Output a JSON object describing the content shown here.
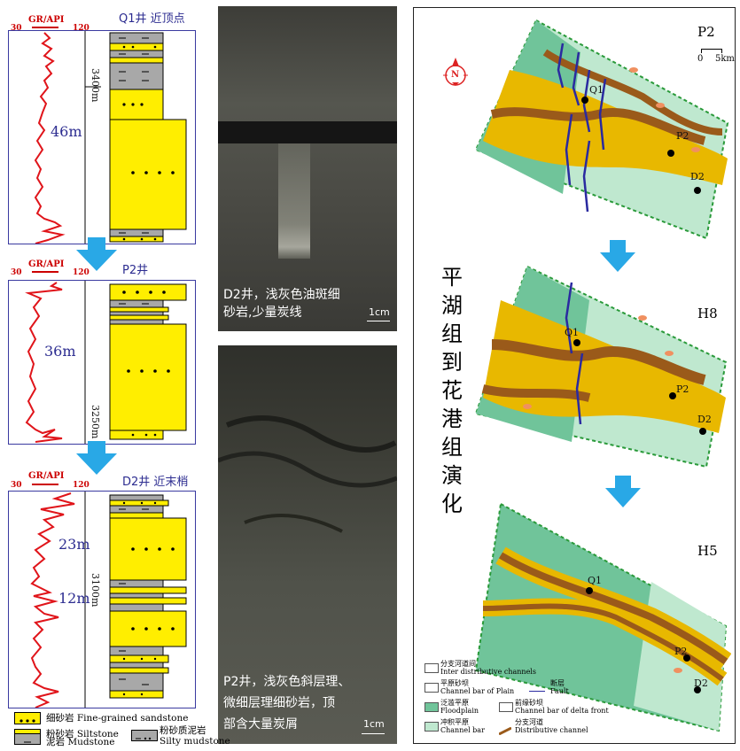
{
  "logs": [
    {
      "well": "Q1井  近顶点",
      "gr": "GR/API",
      "gr_min": "30",
      "gr_max": "120",
      "thickness": "46m",
      "depth": "3400m"
    },
    {
      "well": "P2井",
      "gr": "GR/API",
      "gr_min": "30",
      "gr_max": "120",
      "thickness": "36m",
      "depth": "3250m"
    },
    {
      "well": "D2井 近末梢",
      "gr": "GR/API",
      "gr_min": "30",
      "gr_max": "120",
      "thickness_a": "23m",
      "thickness_b": "12m",
      "depth": "3100m"
    }
  ],
  "lithology_legend": {
    "fine_sand": "细砂岩 Fine-grained sandstone",
    "siltstone": "粉砂岩 Siltstone",
    "mudstone": "泥岩 Mudstone",
    "silty_mud_cn": "粉砂质泥岩",
    "silty_mud_en": "Silty mudstone"
  },
  "photos": {
    "top_caption_1": "D2井，浅灰色油斑细",
    "top_caption_2": "砂岩,少量炭线",
    "top_scale": "1cm",
    "bottom_caption_1": "P2井，浅灰色斜层理、",
    "bottom_caption_2": "微细层理细砂岩，顶",
    "bottom_caption_3": "部含大量炭屑",
    "bottom_scale": "1cm"
  },
  "maps": {
    "vertical_title": [
      "平",
      "湖",
      "组",
      "到",
      "花",
      "港",
      "组",
      "演",
      "化"
    ],
    "north": "N",
    "scale_0": "0",
    "scale_5": "5km",
    "panels": [
      {
        "name": "P2",
        "wells": [
          "Q1",
          "P2",
          "D2"
        ]
      },
      {
        "name": "H8",
        "wells": [
          "Q1",
          "P2",
          "D2"
        ]
      },
      {
        "name": "H5",
        "wells": [
          "Q1",
          "P2",
          "D2"
        ]
      }
    ],
    "legend": {
      "inter_cn": "分支河道间",
      "inter_en": "Inter distributive channels",
      "plain_bar_cn": "平原砂坝",
      "plain_bar_en": "Channel bar of Plain",
      "fault_cn": "断层",
      "fault_en": "Fault",
      "flood_cn": "泛滥平原",
      "flood_en": "Floodplain",
      "front_bar_cn": "前缘砂坝",
      "front_bar_en": "Channel bar of delta front",
      "channel_bar_cn": "冲积平原",
      "channel_bar_en": "Channel bar",
      "dist_cn": "分支河道",
      "dist_en": "Distributive channel"
    }
  },
  "colors": {
    "sand": "#ffee00",
    "mud": "#a8a8a8",
    "gr_curve": "#e0141a",
    "arrow": "#29a8e6",
    "floodplain": "#70c49a",
    "light_green": "#bfe8cf",
    "channel": "#e8b800",
    "brown": "#9a5a1a",
    "fault": "#2a2aa0"
  }
}
